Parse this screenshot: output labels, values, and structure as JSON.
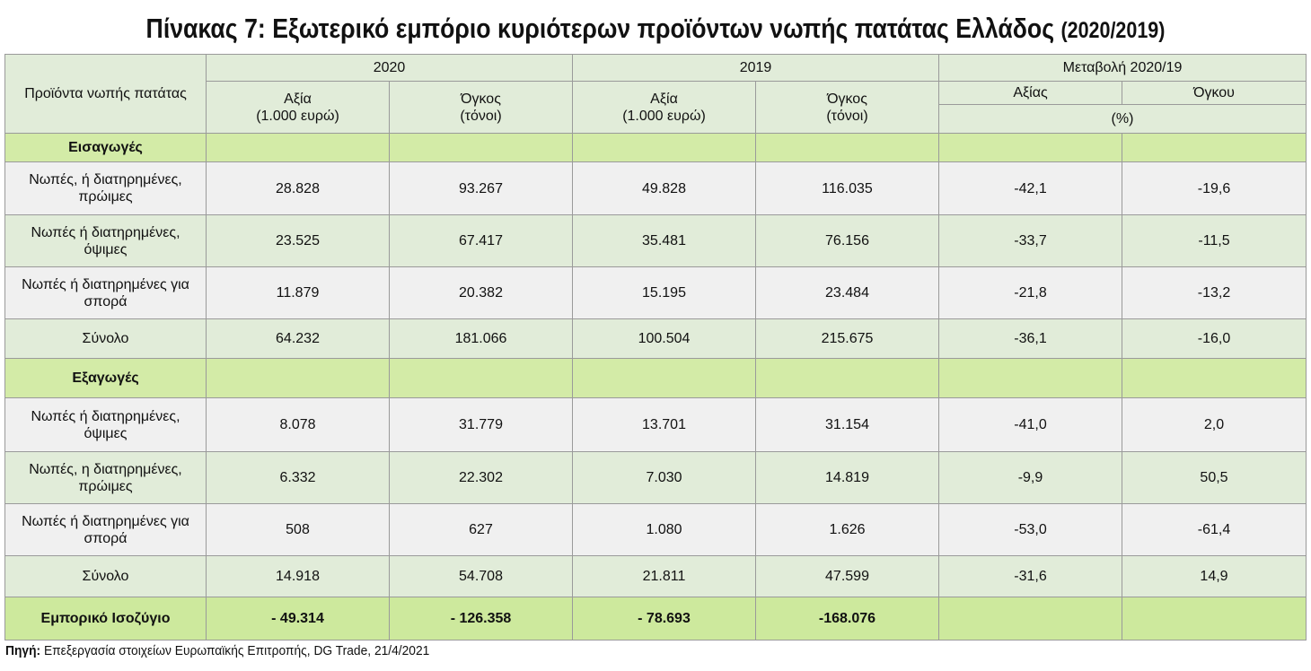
{
  "title": {
    "main": "Πίνακας 7: Εξωτερικό εμπόριο κυριότερων προϊόντων νωπής πατάτας Ελλάδος",
    "years": "(2020/2019)"
  },
  "header": {
    "product_col": "Προϊόντα νωπής πατάτας",
    "year_2020": "2020",
    "year_2019": "2019",
    "change": "Μεταβολή 2020/19",
    "value_line1": "Αξία",
    "value_line2": "(1.000 ευρώ)",
    "volume_line1": "Όγκος",
    "volume_line2": "(τόνοι)",
    "change_value": "Αξίας",
    "change_volume": "Όγκου",
    "percent": "(%)"
  },
  "imports": {
    "section_label": "Εισαγωγές",
    "rows": [
      {
        "label_1": "Νωπές, ή διατηρημένες,",
        "label_2": "πρώιμες",
        "v2020": "28.828",
        "o2020": "93.267",
        "v2019": "49.828",
        "o2019": "116.035",
        "cv": "-42,1",
        "co": "-19,6"
      },
      {
        "label_1": "Νωπές ή διατηρημένες,",
        "label_2": "όψιμες",
        "v2020": "23.525",
        "o2020": "67.417",
        "v2019": "35.481",
        "o2019": "76.156",
        "cv": "-33,7",
        "co": "-11,5"
      },
      {
        "label_1": "Νωπές ή διατηρημένες για",
        "label_2": "σπορά",
        "v2020": "11.879",
        "o2020": "20.382",
        "v2019": "15.195",
        "o2019": "23.484",
        "cv": "-21,8",
        "co": "-13,2"
      }
    ],
    "total": {
      "label": "Σύνολο",
      "v2020": "64.232",
      "o2020": "181.066",
      "v2019": "100.504",
      "o2019": "215.675",
      "cv": "-36,1",
      "co": "-16,0"
    }
  },
  "exports": {
    "section_label": "Εξαγωγές",
    "rows": [
      {
        "label_1": "Νωπές ή διατηρημένες,",
        "label_2": "όψιμες",
        "v2020": "8.078",
        "o2020": "31.779",
        "v2019": "13.701",
        "o2019": "31.154",
        "cv": "-41,0",
        "co": "2,0"
      },
      {
        "label_1": "Νωπές, η διατηρημένες,",
        "label_2": "πρώιμες",
        "v2020": "6.332",
        "o2020": "22.302",
        "v2019": "7.030",
        "o2019": "14.819",
        "cv": "-9,9",
        "co": "50,5"
      },
      {
        "label_1": "Νωπές ή διατηρημένες για",
        "label_2": "σπορά",
        "v2020": "508",
        "o2020": "627",
        "v2019": "1.080",
        "o2019": "1.626",
        "cv": "-53,0",
        "co": "-61,4"
      }
    ],
    "total": {
      "label": "Σύνολο",
      "v2020": "14.918",
      "o2020": "54.708",
      "v2019": "21.811",
      "o2019": "47.599",
      "cv": "-31,6",
      "co": "14,9"
    }
  },
  "balance": {
    "label": "Εμπορικό Ισοζύγιο",
    "v2020": "- 49.314",
    "o2020": "- 126.358",
    "v2019": "- 78.693",
    "o2019": "-168.076"
  },
  "source": {
    "prefix": "Πηγή:",
    "text": "Επεξεργασία στοιχείων Ευρωπαϊκής Επιτροπής, DG Trade, 21/4/2021"
  },
  "colors": {
    "header_green": "#e1ecd9",
    "section_lime": "#d3eba7",
    "row_light": "#f0f0f0",
    "border": "#9a9a9a"
  }
}
